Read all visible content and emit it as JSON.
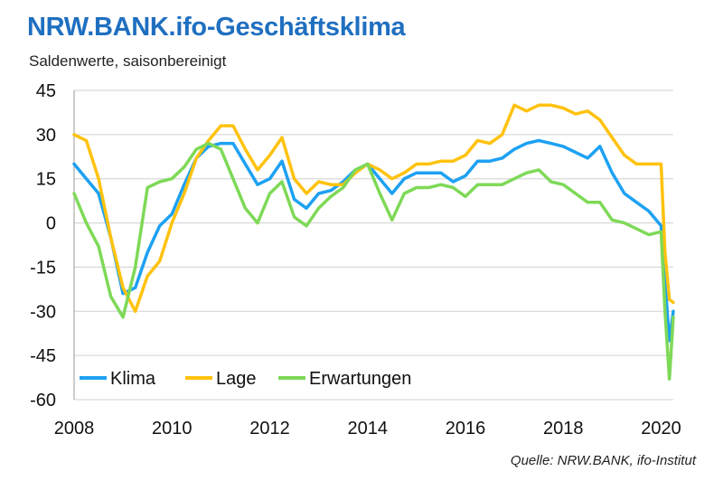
{
  "title": "NRW.BANK.ifo-Geschäftsklima",
  "subtitle": "Saldenwerte, saisonbereinigt",
  "source": "Quelle:  NRW.BANK, ifo-Institut",
  "colors": {
    "title": "#1f6fc0",
    "Klima": "#1da1f2",
    "Lage": "#ffc20e",
    "Erwartungen": "#7ed957",
    "grid": "#d0d0d0"
  },
  "chart_data": {
    "type": "line",
    "title": "NRW.BANK.ifo-Geschäftsklima",
    "subtitle": "Saldenwerte, saisonbereinigt",
    "xlabel": "",
    "ylabel": "",
    "xlim": [
      2008,
      2020.25
    ],
    "ylim": [
      -60,
      45
    ],
    "yticks": [
      45,
      30,
      15,
      0,
      -15,
      -30,
      -45,
      -60
    ],
    "xticks": [
      2008,
      2010,
      2012,
      2014,
      2016,
      2018,
      2020
    ],
    "grid": true,
    "legend_position": "bottom-left",
    "series": [
      {
        "name": "Klima",
        "x": [
          2008.0,
          2008.25,
          2008.5,
          2008.75,
          2009.0,
          2009.25,
          2009.5,
          2009.75,
          2010.0,
          2010.25,
          2010.5,
          2010.75,
          2011.0,
          2011.25,
          2011.5,
          2011.75,
          2012.0,
          2012.25,
          2012.5,
          2012.75,
          2013.0,
          2013.25,
          2013.5,
          2013.75,
          2014.0,
          2014.25,
          2014.5,
          2014.75,
          2015.0,
          2015.25,
          2015.5,
          2015.75,
          2016.0,
          2016.25,
          2016.5,
          2016.75,
          2017.0,
          2017.25,
          2017.5,
          2017.75,
          2018.0,
          2018.25,
          2018.5,
          2018.75,
          2019.0,
          2019.25,
          2019.5,
          2019.75,
          2020.0,
          2020.08,
          2020.17,
          2020.25
        ],
        "values": [
          20,
          15,
          10,
          -5,
          -24,
          -22,
          -10,
          -1,
          3,
          13,
          22,
          26,
          27,
          27,
          20,
          13,
          15,
          21,
          8,
          5,
          10,
          11,
          14,
          18,
          20,
          15,
          10,
          15,
          17,
          17,
          17,
          14,
          16,
          21,
          21,
          22,
          25,
          27,
          28,
          27,
          26,
          24,
          22,
          26,
          17,
          10,
          7,
          4,
          -1,
          -20,
          -40,
          -30
        ]
      },
      {
        "name": "Lage",
        "x": [
          2008.0,
          2008.25,
          2008.5,
          2008.75,
          2009.0,
          2009.25,
          2009.5,
          2009.75,
          2010.0,
          2010.25,
          2010.5,
          2010.75,
          2011.0,
          2011.25,
          2011.5,
          2011.75,
          2012.0,
          2012.25,
          2012.5,
          2012.75,
          2013.0,
          2013.25,
          2013.5,
          2013.75,
          2014.0,
          2014.25,
          2014.5,
          2014.75,
          2015.0,
          2015.25,
          2015.5,
          2015.75,
          2016.0,
          2016.25,
          2016.5,
          2016.75,
          2017.0,
          2017.25,
          2017.5,
          2017.75,
          2018.0,
          2018.25,
          2018.5,
          2018.75,
          2019.0,
          2019.25,
          2019.5,
          2019.75,
          2020.0,
          2020.08,
          2020.17,
          2020.25
        ],
        "values": [
          30,
          28,
          15,
          -5,
          -22,
          -30,
          -18,
          -13,
          0,
          10,
          22,
          28,
          33,
          33,
          25,
          18,
          23,
          29,
          15,
          10,
          14,
          13,
          13,
          17,
          20,
          18,
          15,
          17,
          20,
          20,
          21,
          21,
          23,
          28,
          27,
          30,
          40,
          38,
          40,
          40,
          39,
          37,
          38,
          35,
          29,
          23,
          20,
          20,
          20,
          -10,
          -26,
          -27
        ]
      },
      {
        "name": "Erwartungen",
        "x": [
          2008.0,
          2008.25,
          2008.5,
          2008.75,
          2009.0,
          2009.25,
          2009.5,
          2009.75,
          2010.0,
          2010.25,
          2010.5,
          2010.75,
          2011.0,
          2011.25,
          2011.5,
          2011.75,
          2012.0,
          2012.25,
          2012.5,
          2012.75,
          2013.0,
          2013.25,
          2013.5,
          2013.75,
          2014.0,
          2014.25,
          2014.5,
          2014.75,
          2015.0,
          2015.25,
          2015.5,
          2015.75,
          2016.0,
          2016.25,
          2016.5,
          2016.75,
          2017.0,
          2017.25,
          2017.5,
          2017.75,
          2018.0,
          2018.25,
          2018.5,
          2018.75,
          2019.0,
          2019.25,
          2019.5,
          2019.75,
          2020.0,
          2020.08,
          2020.17,
          2020.25
        ],
        "values": [
          10,
          0,
          -8,
          -25,
          -32,
          -15,
          12,
          14,
          15,
          19,
          25,
          27,
          25,
          15,
          5,
          0,
          10,
          14,
          2,
          -1,
          5,
          9,
          12,
          18,
          20,
          10,
          1,
          10,
          12,
          12,
          13,
          12,
          9,
          13,
          13,
          13,
          15,
          17,
          18,
          14,
          13,
          10,
          7,
          7,
          1,
          0,
          -2,
          -4,
          -3,
          -30,
          -53,
          -32
        ]
      }
    ]
  },
  "legend": [
    {
      "label": "Klima",
      "color": "#1da1f2"
    },
    {
      "label": "Lage",
      "color": "#ffc20e"
    },
    {
      "label": "Erwartungen",
      "color": "#7ed957"
    }
  ]
}
